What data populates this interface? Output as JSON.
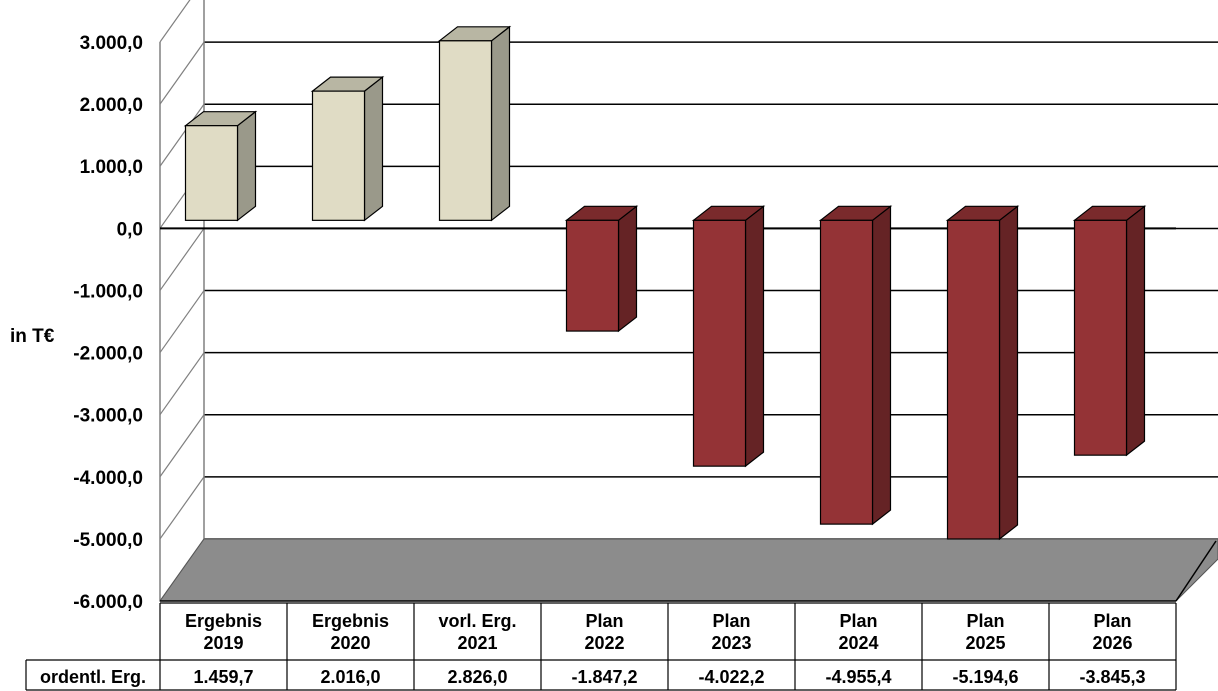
{
  "chart_data": {
    "type": "bar",
    "ylabel": "in T€",
    "ylim": [
      -6000,
      3000
    ],
    "yticks": [
      {
        "value": 3000,
        "label": "3.000,0"
      },
      {
        "value": 2000,
        "label": "2.000,0"
      },
      {
        "value": 1000,
        "label": "1.000,0"
      },
      {
        "value": 0,
        "label": "0,0"
      },
      {
        "value": -1000,
        "label": "-1.000,0"
      },
      {
        "value": -2000,
        "label": "-2.000,0"
      },
      {
        "value": -3000,
        "label": "-3.000,0"
      },
      {
        "value": -4000,
        "label": "-4.000,0"
      },
      {
        "value": -5000,
        "label": "-5.000,0"
      },
      {
        "value": -6000,
        "label": "-6.000,0"
      }
    ],
    "categories": [
      [
        "Ergebnis",
        "2019"
      ],
      [
        "Ergebnis",
        "2020"
      ],
      [
        "vorl. Erg.",
        "2021"
      ],
      [
        "Plan",
        "2022"
      ],
      [
        "Plan",
        "2023"
      ],
      [
        "Plan",
        "2024"
      ],
      [
        "Plan",
        "2025"
      ],
      [
        "Plan",
        "2026"
      ]
    ],
    "series": [
      {
        "name": "ordentl. Erg.",
        "values": [
          1459.7,
          2016.0,
          2826.0,
          -1847.2,
          -4022.2,
          -4955.4,
          -5194.6,
          -3845.3
        ],
        "value_labels": [
          "1.459,7",
          "2.016,0",
          "2.826,0",
          "-1.847,2",
          "-4.022,2",
          "-4.955,4",
          "-5.194,6",
          "-3.845,3"
        ]
      }
    ],
    "grid": true,
    "data_table": true,
    "colors": {
      "positive_front": "#e0dcc5",
      "positive_side": "#9a998a",
      "positive_top": "#b8b6a3",
      "negative_front": "#943336",
      "negative_side": "#652325",
      "negative_top": "#7a2a2c",
      "floor": "#8c8c8c"
    }
  }
}
